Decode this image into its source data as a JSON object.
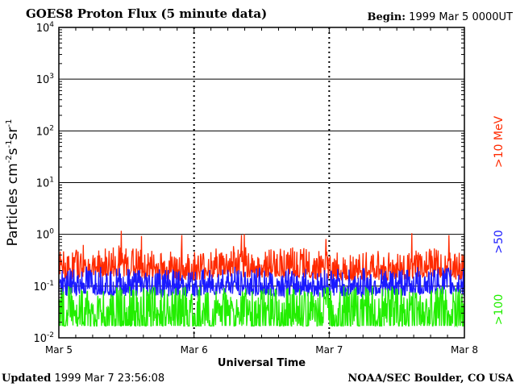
{
  "header": {
    "title": "GOES8 Proton Flux (5 minute data)",
    "begin_label": "Begin:",
    "begin_value": "1999 Mar 5 0000UT"
  },
  "footer": {
    "updated_label": "Updated",
    "updated_value": "1999 Mar  7 23:56:08",
    "credit": "NOAA/SEC Boulder, CO USA"
  },
  "chart_data": {
    "type": "line",
    "title": "GOES8 Proton Flux (5 minute data)",
    "xlabel": "Universal Time",
    "ylabel": "Particles cm⁻²s⁻¹sr⁻¹",
    "y_scale": "log",
    "ylim": [
      0.01,
      10000
    ],
    "y_ticks": [
      {
        "value": 0.01,
        "base": "10",
        "exp": "-2"
      },
      {
        "value": 0.1,
        "base": "10",
        "exp": "-1"
      },
      {
        "value": 1,
        "base": "10",
        "exp": "0"
      },
      {
        "value": 10,
        "base": "10",
        "exp": "1"
      },
      {
        "value": 100,
        "base": "10",
        "exp": "2"
      },
      {
        "value": 1000,
        "base": "10",
        "exp": "3"
      },
      {
        "value": 10000,
        "base": "10",
        "exp": "4"
      }
    ],
    "x_ticks": [
      "Mar 5",
      "Mar 6",
      "Mar 7",
      "Mar 8"
    ],
    "xlim": [
      "1999-03-05 00:00",
      "1999-03-08 00:00"
    ],
    "grid": true,
    "legend_position": "right",
    "series": [
      {
        "name": ">10 MeV",
        "color": "#ff2a00",
        "x": [
          "03-05 00:00",
          "03-05 06:00",
          "03-05 12:00",
          "03-05 18:00",
          "03-06 00:00",
          "03-06 06:00",
          "03-06 12:00",
          "03-06 18:00",
          "03-07 00:00",
          "03-07 06:00",
          "03-07 12:00",
          "03-07 18:00",
          "03-08 00:00"
        ],
        "values": [
          0.17,
          0.19,
          0.2,
          0.17,
          0.17,
          0.2,
          0.19,
          0.2,
          0.17,
          0.17,
          0.17,
          0.2,
          0.17
        ]
      },
      {
        "name": ">50",
        "color": "#1a1aff",
        "x": [
          "03-05 00:00",
          "03-05 06:00",
          "03-05 12:00",
          "03-05 18:00",
          "03-06 00:00",
          "03-06 06:00",
          "03-06 12:00",
          "03-06 18:00",
          "03-07 00:00",
          "03-07 06:00",
          "03-07 12:00",
          "03-07 18:00",
          "03-08 00:00"
        ],
        "values": [
          0.1,
          0.11,
          0.1,
          0.1,
          0.1,
          0.11,
          0.1,
          0.1,
          0.1,
          0.1,
          0.1,
          0.11,
          0.1
        ]
      },
      {
        "name": ">100",
        "color": "#22ee00",
        "x": [
          "03-05 00:00",
          "03-05 06:00",
          "03-05 12:00",
          "03-05 18:00",
          "03-06 00:00",
          "03-06 06:00",
          "03-06 12:00",
          "03-06 18:00",
          "03-07 00:00",
          "03-07 06:00",
          "03-07 12:00",
          "03-07 18:00",
          "03-08 00:00"
        ],
        "values": [
          0.05,
          0.05,
          0.05,
          0.05,
          0.05,
          0.05,
          0.05,
          0.05,
          0.05,
          0.05,
          0.05,
          0.05,
          0.05
        ]
      }
    ]
  }
}
